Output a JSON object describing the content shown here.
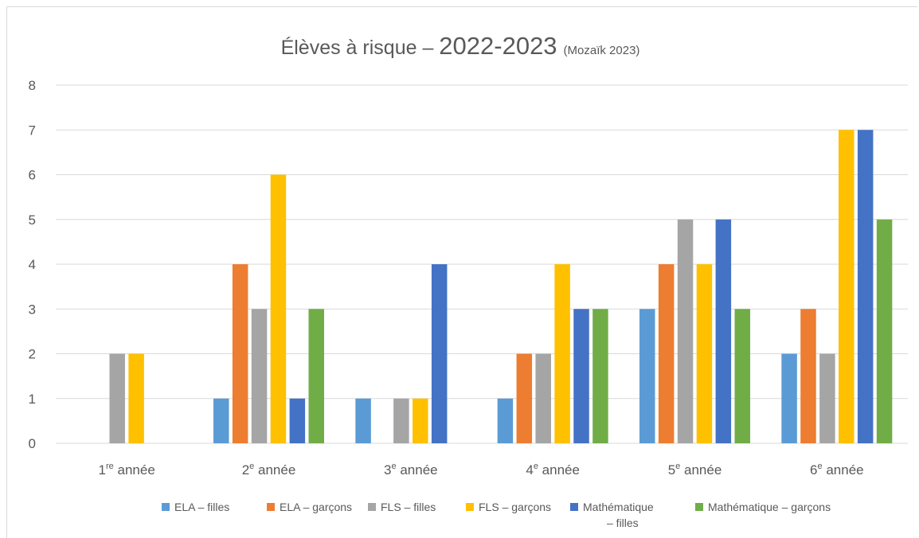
{
  "chart_data": {
    "type": "bar",
    "title": {
      "main": "Élèves à risque – ",
      "year": "2022-2023",
      "source": "(Mozaïk 2023)"
    },
    "categories": [
      {
        "num": "1",
        "sup": "re",
        "text": " année"
      },
      {
        "num": "2",
        "sup": "e",
        "text": " année"
      },
      {
        "num": "3",
        "sup": "e",
        "text": " année"
      },
      {
        "num": "4",
        "sup": "e",
        "text": " année"
      },
      {
        "num": "5",
        "sup": "e",
        "text": " année"
      },
      {
        "num": "6",
        "sup": "e",
        "text": " année"
      }
    ],
    "series": [
      {
        "name": "ELA – filles",
        "color": "#5b9bd5",
        "values": [
          0,
          1,
          1,
          1,
          3,
          2
        ]
      },
      {
        "name": "ELA – garçons",
        "color": "#ed7d31",
        "values": [
          0,
          4,
          0,
          2,
          4,
          3
        ]
      },
      {
        "name": "FLS – filles",
        "color": "#a5a5a5",
        "values": [
          2,
          3,
          1,
          2,
          5,
          2
        ]
      },
      {
        "name": "FLS – garçons",
        "color": "#ffc000",
        "values": [
          2,
          6,
          1,
          4,
          4,
          7
        ]
      },
      {
        "name": "Mathématique – filles",
        "color": "#4472c4",
        "values": [
          0,
          1,
          4,
          3,
          5,
          7
        ]
      },
      {
        "name": "Mathématique – garçons",
        "color": "#70ad47",
        "values": [
          0,
          3,
          0,
          3,
          3,
          5
        ]
      }
    ],
    "ylim": [
      0,
      8
    ],
    "yticks": [
      "0",
      "1",
      "2",
      "3",
      "4",
      "5",
      "6",
      "7",
      "8"
    ],
    "grid": true,
    "legend_position": "bottom"
  }
}
